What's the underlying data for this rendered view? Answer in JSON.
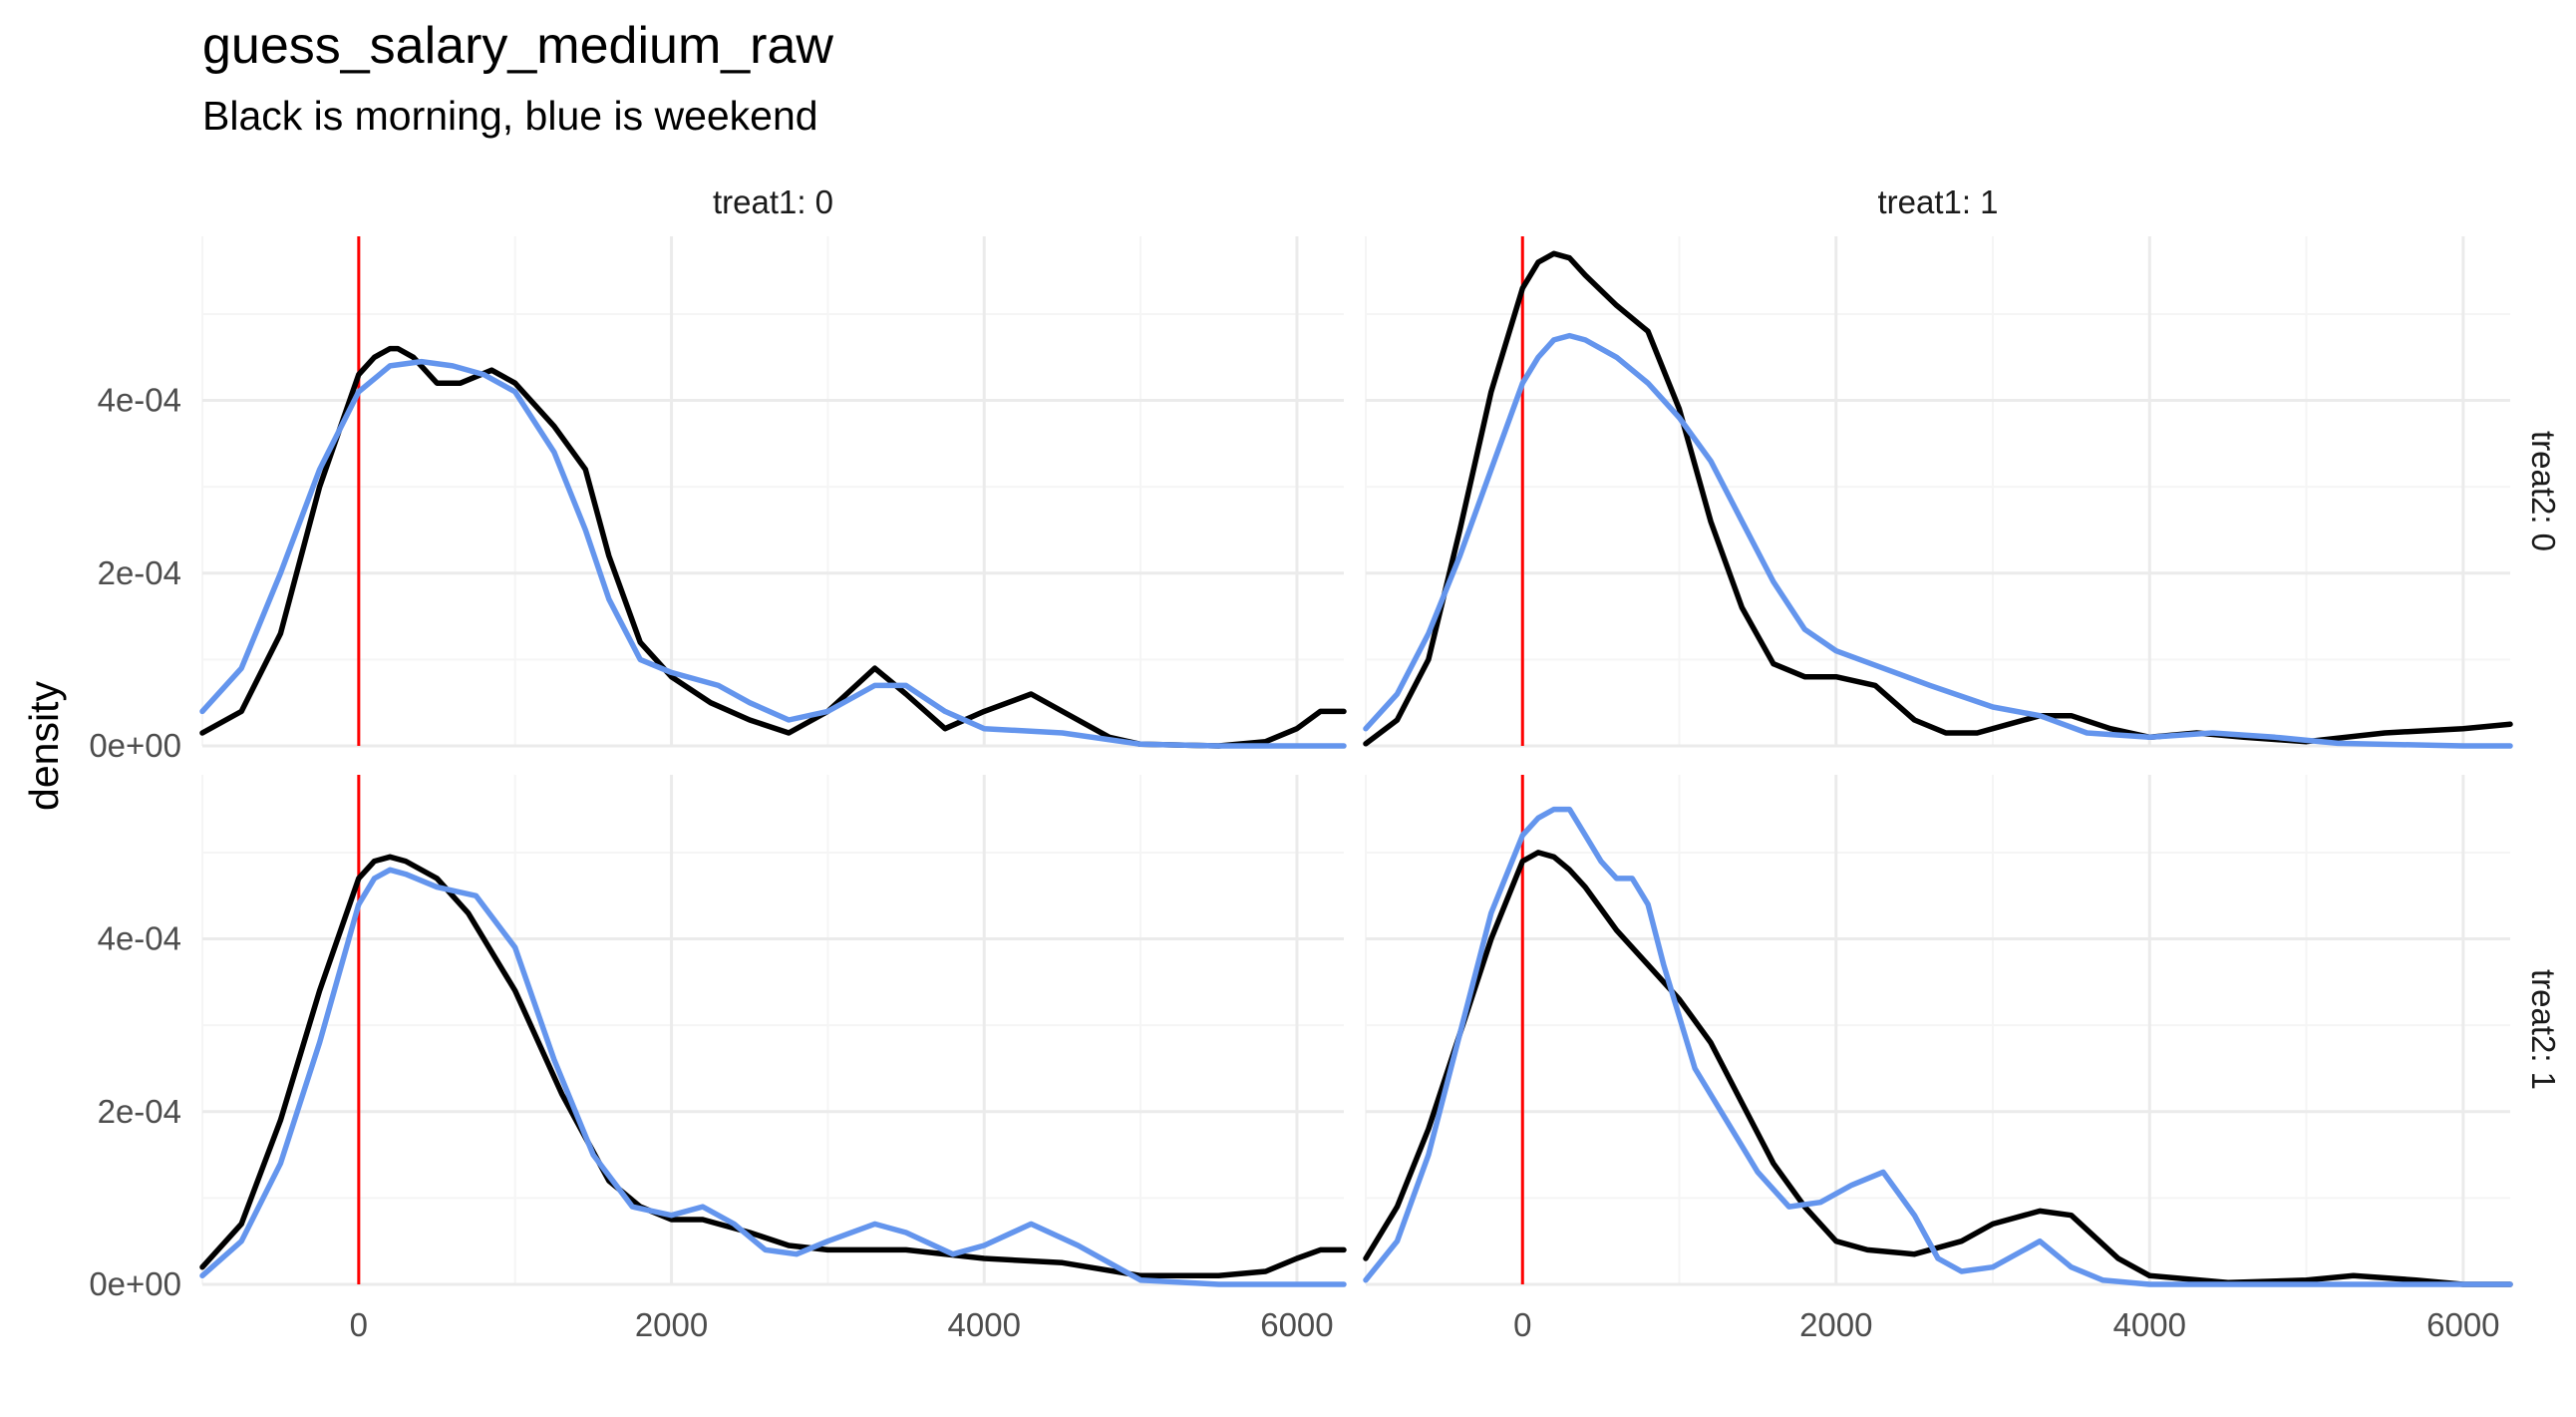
{
  "title": "guess_salary_medium_raw",
  "subtitle": "Black is morning, blue is weekend",
  "colors": {
    "morning": "#000000",
    "weekend": "#6495ED",
    "reference_line": "#FF0000",
    "grid_major": "#EBEBEB",
    "grid_minor": "#F5F5F5"
  },
  "chart_data": {
    "type": "line",
    "title": "guess_salary_medium_raw",
    "subtitle": "Black is morning, blue is weekend",
    "xlabel": "",
    "ylabel": "density",
    "xlim": [
      -1000,
      6300
    ],
    "ylim": [
      0,
      0.00059
    ],
    "grid": true,
    "legend": "none",
    "reference_line_x": 0,
    "x_ticks": [
      0,
      2000,
      4000,
      6000
    ],
    "x_tick_labels": [
      "0",
      "2000",
      "4000",
      "6000"
    ],
    "y_ticks": [
      0,
      0.0002,
      0.0004
    ],
    "y_tick_labels": [
      "0e+00",
      "2e-04",
      "4e-04"
    ],
    "panels": [
      {
        "col_label": "treat1: 0",
        "row_label": "treat2: 0",
        "series": [
          {
            "color": "#000000",
            "x": [
              -1000,
              -750,
              -500,
              -250,
              0,
              100,
              200,
              250,
              350,
              500,
              650,
              850,
              1000,
              1250,
              1450,
              1600,
              1800,
              2000,
              2250,
              2500,
              2750,
              3000,
              3300,
              3500,
              3750,
              4000,
              4300,
              4500,
              4800,
              5000,
              5500,
              5800,
              6000,
              6150,
              6300
            ],
            "y": [
              1.5e-05,
              4e-05,
              0.00013,
              0.0003,
              0.00043,
              0.00045,
              0.00046,
              0.00046,
              0.00045,
              0.00042,
              0.00042,
              0.000435,
              0.00042,
              0.00037,
              0.00032,
              0.00022,
              0.00012,
              8e-05,
              5e-05,
              3e-05,
              1.5e-05,
              4e-05,
              9e-05,
              6e-05,
              2e-05,
              4e-05,
              6e-05,
              4e-05,
              1e-05,
              2e-06,
              0.0,
              5e-06,
              2e-05,
              4e-05,
              4e-05
            ]
          },
          {
            "color": "#6495ED",
            "x": [
              -1000,
              -750,
              -500,
              -250,
              0,
              200,
              400,
              600,
              800,
              1000,
              1250,
              1450,
              1600,
              1800,
              2000,
              2300,
              2500,
              2750,
              3000,
              3300,
              3500,
              3750,
              4000,
              4500,
              5000,
              5500,
              6000,
              6300
            ],
            "y": [
              4e-05,
              9e-05,
              0.0002,
              0.00032,
              0.00041,
              0.00044,
              0.000445,
              0.00044,
              0.00043,
              0.00041,
              0.00034,
              0.00025,
              0.00017,
              0.0001,
              8.5e-05,
              7e-05,
              5e-05,
              3e-05,
              4e-05,
              7e-05,
              7e-05,
              4e-05,
              2e-05,
              1.5e-05,
              2e-06,
              0.0,
              0.0,
              0.0
            ]
          }
        ]
      },
      {
        "col_label": "treat1: 1",
        "row_label": "treat2: 0",
        "series": [
          {
            "color": "#000000",
            "x": [
              -1000,
              -800,
              -600,
              -400,
              -200,
              0,
              100,
              200,
              300,
              400,
              600,
              800,
              1000,
              1200,
              1400,
              1600,
              1800,
              2000,
              2250,
              2500,
              2700,
              2900,
              3100,
              3300,
              3500,
              3750,
              4000,
              4300,
              4600,
              5000,
              5500,
              6000,
              6300
            ],
            "y": [
              2.5e-06,
              3e-05,
              0.0001,
              0.00025,
              0.00041,
              0.00053,
              0.00056,
              0.00057,
              0.000565,
              0.000545,
              0.00051,
              0.00048,
              0.00039,
              0.00026,
              0.00016,
              9.5e-05,
              8e-05,
              8e-05,
              7e-05,
              3e-05,
              1.5e-05,
              1.5e-05,
              2.5e-05,
              3.5e-05,
              3.5e-05,
              2e-05,
              1e-05,
              1.5e-05,
              1e-05,
              5e-06,
              1.5e-05,
              2e-05,
              2.5e-05
            ]
          },
          {
            "color": "#6495ED",
            "x": [
              -1000,
              -800,
              -600,
              -400,
              -200,
              0,
              100,
              200,
              300,
              400,
              600,
              800,
              1000,
              1200,
              1400,
              1600,
              1800,
              2000,
              2300,
              2600,
              3000,
              3300,
              3600,
              4000,
              4400,
              4800,
              5200,
              6000,
              6300
            ],
            "y": [
              2e-05,
              6e-05,
              0.00013,
              0.00022,
              0.00032,
              0.00042,
              0.00045,
              0.00047,
              0.000475,
              0.00047,
              0.00045,
              0.00042,
              0.00038,
              0.00033,
              0.00026,
              0.00019,
              0.000135,
              0.00011,
              9e-05,
              7e-05,
              4.5e-05,
              3.5e-05,
              1.5e-05,
              1e-05,
              1.5e-05,
              1e-05,
              3e-06,
              0.0,
              0.0
            ]
          }
        ]
      },
      {
        "col_label": "treat1: 0",
        "row_label": "treat2: 1",
        "series": [
          {
            "color": "#000000",
            "x": [
              -1000,
              -750,
              -500,
              -250,
              0,
              100,
              200,
              300,
              500,
              700,
              1000,
              1300,
              1600,
              1800,
              2000,
              2200,
              2500,
              2750,
              3000,
              3500,
              4000,
              4500,
              5000,
              5500,
              5800,
              6000,
              6150,
              6300
            ],
            "y": [
              2e-05,
              7e-05,
              0.00019,
              0.00034,
              0.00047,
              0.00049,
              0.000495,
              0.00049,
              0.00047,
              0.00043,
              0.00034,
              0.00022,
              0.00012,
              9e-05,
              7.5e-05,
              7.5e-05,
              6e-05,
              4.5e-05,
              4e-05,
              4e-05,
              3e-05,
              2.5e-05,
              1e-05,
              1e-05,
              1.5e-05,
              3e-05,
              4e-05,
              4e-05
            ]
          },
          {
            "color": "#6495ED",
            "x": [
              -1000,
              -750,
              -500,
              -250,
              0,
              100,
              200,
              300,
              500,
              750,
              1000,
              1250,
              1500,
              1750,
              2000,
              2200,
              2400,
              2600,
              2800,
              3000,
              3300,
              3500,
              3800,
              4000,
              4300,
              4600,
              5000,
              5500,
              6000,
              6300
            ],
            "y": [
              1e-05,
              5e-05,
              0.00014,
              0.00028,
              0.00044,
              0.00047,
              0.00048,
              0.000475,
              0.00046,
              0.00045,
              0.00039,
              0.00026,
              0.00015,
              9e-05,
              8e-05,
              9e-05,
              7e-05,
              4e-05,
              3.5e-05,
              5e-05,
              7e-05,
              6e-05,
              3.5e-05,
              4.5e-05,
              7e-05,
              4.5e-05,
              5e-06,
              0.0,
              0.0,
              0.0
            ]
          }
        ]
      },
      {
        "col_label": "treat1: 1",
        "row_label": "treat2: 1",
        "series": [
          {
            "color": "#000000",
            "x": [
              -1000,
              -800,
              -600,
              -400,
              -200,
              0,
              100,
              200,
              300,
              400,
              600,
              800,
              1000,
              1200,
              1400,
              1600,
              1800,
              2000,
              2200,
              2500,
              2800,
              3000,
              3300,
              3500,
              3800,
              4000,
              4500,
              5000,
              5300,
              5700,
              6000,
              6300
            ],
            "y": [
              3e-05,
              9e-05,
              0.00018,
              0.00029,
              0.0004,
              0.00049,
              0.0005,
              0.000495,
              0.00048,
              0.00046,
              0.00041,
              0.00037,
              0.00033,
              0.00028,
              0.00021,
              0.00014,
              9e-05,
              5e-05,
              4e-05,
              3.5e-05,
              5e-05,
              7e-05,
              8.5e-05,
              8e-05,
              3e-05,
              1e-05,
              2e-06,
              5e-06,
              1e-05,
              5e-06,
              0.0,
              0.0
            ]
          },
          {
            "color": "#6495ED",
            "x": [
              -1000,
              -800,
              -600,
              -400,
              -200,
              0,
              100,
              200,
              300,
              400,
              500,
              600,
              700,
              800,
              900,
              1000,
              1100,
              1300,
              1500,
              1700,
              1900,
              2100,
              2300,
              2500,
              2650,
              2800,
              3000,
              3200,
              3300,
              3500,
              3700,
              4000,
              4500,
              5000,
              6000,
              6300
            ],
            "y": [
              5e-06,
              5e-05,
              0.00015,
              0.00029,
              0.00043,
              0.00052,
              0.00054,
              0.00055,
              0.00055,
              0.00052,
              0.00049,
              0.00047,
              0.00047,
              0.00044,
              0.00037,
              0.00031,
              0.00025,
              0.00019,
              0.00013,
              9e-05,
              9.5e-05,
              0.000115,
              0.00013,
              8e-05,
              3e-05,
              1.5e-05,
              2e-05,
              4e-05,
              5e-05,
              2e-05,
              5e-06,
              0.0,
              0.0,
              0.0,
              0.0,
              0.0
            ]
          }
        ]
      }
    ]
  }
}
